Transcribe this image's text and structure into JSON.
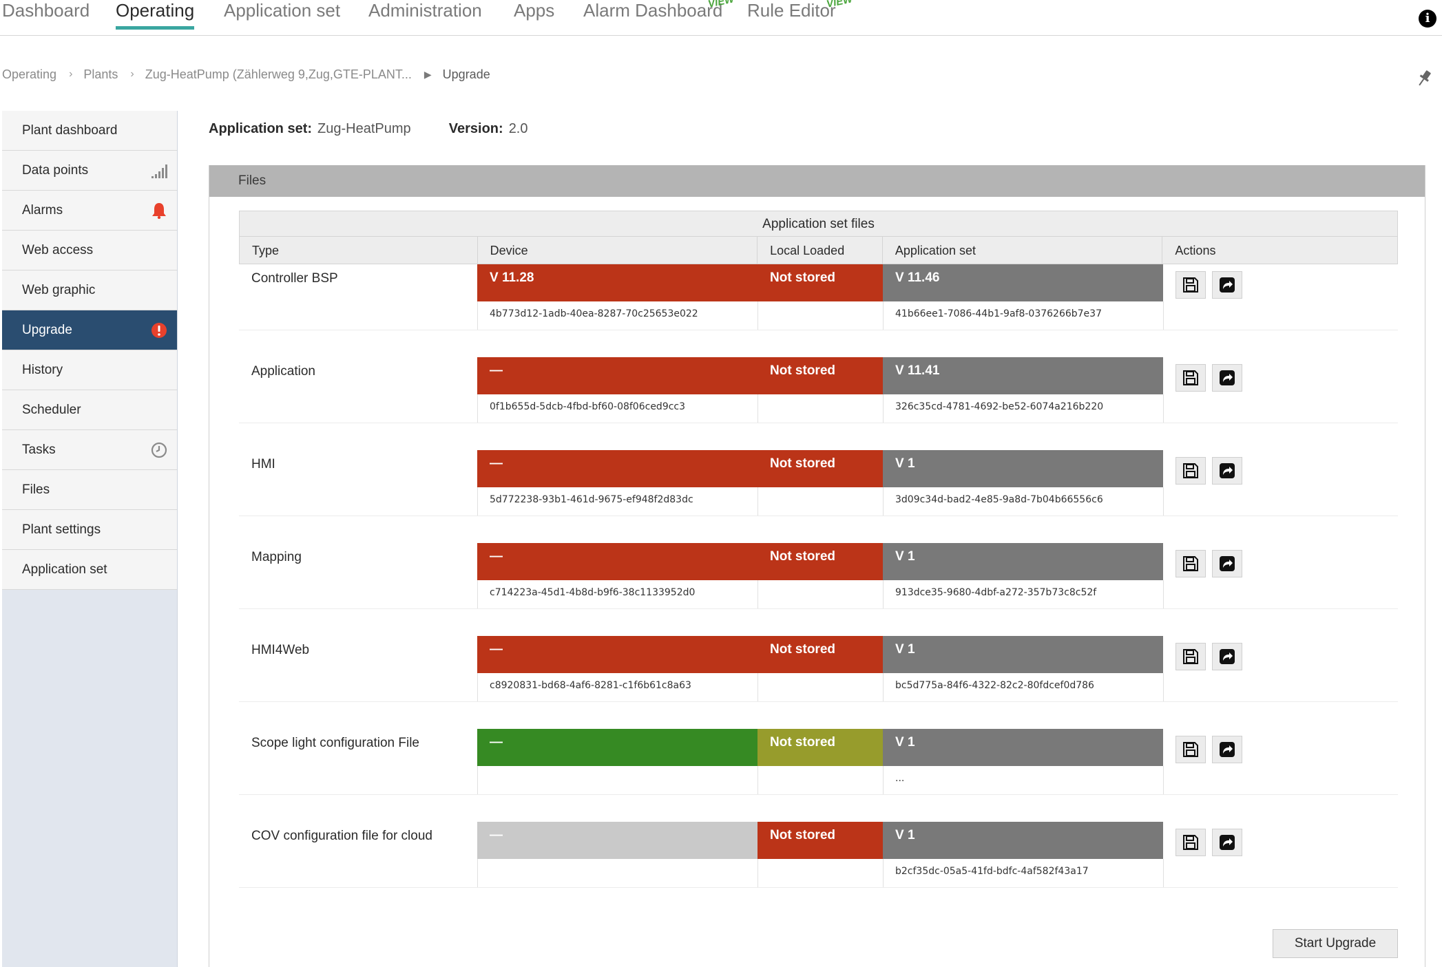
{
  "topnav": {
    "tabs": [
      {
        "label": "Dashboard"
      },
      {
        "label": "Operating"
      },
      {
        "label": "Application set"
      },
      {
        "label": "Administration"
      },
      {
        "label": "Apps"
      },
      {
        "label": "Alarm Dashboard"
      },
      {
        "label": "Rule Editor"
      }
    ],
    "preview_label": "VIEW"
  },
  "breadcrumb": {
    "items": [
      "Operating",
      "Plants",
      "Zug-HeatPump (Zählerweg 9,Zug,GTE-PLANT...",
      "Upgrade"
    ]
  },
  "sidebar": {
    "items": [
      {
        "label": "Plant dashboard",
        "icon": ""
      },
      {
        "label": "Data points",
        "icon": "signal-bars-icon"
      },
      {
        "label": "Alarms",
        "icon": "bell-icon"
      },
      {
        "label": "Web access",
        "icon": ""
      },
      {
        "label": "Web graphic",
        "icon": ""
      },
      {
        "label": "Upgrade",
        "icon": "alert-icon"
      },
      {
        "label": "History",
        "icon": ""
      },
      {
        "label": "Scheduler",
        "icon": ""
      },
      {
        "label": "Tasks",
        "icon": "clock-icon"
      },
      {
        "label": "Files",
        "icon": ""
      },
      {
        "label": "Plant settings",
        "icon": ""
      },
      {
        "label": "Application set",
        "icon": ""
      }
    ]
  },
  "appinfo": {
    "app_label": "Application set:",
    "app_value": "Zug-HeatPump",
    "version_label": "Version:",
    "version_value": "2.0"
  },
  "files": {
    "header": "Files",
    "table_caption": "Application set files",
    "columns": [
      "Type",
      "Device",
      "Local Loaded",
      "Application set",
      "Actions"
    ],
    "rows": [
      {
        "type": "Controller BSP",
        "device": "V 11.28",
        "device_hash": "4b773d12-1adb-40ea-8287-70c25653e022",
        "local": "Not stored",
        "appset": "V 11.46",
        "appset_hash": "41b66ee1-7086-44b1-9af8-0376266b7e37"
      },
      {
        "type": "Application",
        "device": "—",
        "device_hash": "0f1b655d-5dcb-4fbd-bf60-08f06ced9cc3",
        "local": "Not stored",
        "appset": "V 11.41",
        "appset_hash": "326c35cd-4781-4692-be52-6074a216b220"
      },
      {
        "type": "HMI",
        "device": "—",
        "device_hash": "5d772238-93b1-461d-9675-ef948f2d83dc",
        "local": "Not stored",
        "appset": "V 1",
        "appset_hash": "3d09c34d-bad2-4e85-9a8d-7b04b66556c6"
      },
      {
        "type": "Mapping",
        "device": "—",
        "device_hash": "c714223a-45d1-4b8d-b9f6-38c1133952d0",
        "local": "Not stored",
        "appset": "V 1",
        "appset_hash": "913dce35-9680-4dbf-a272-357b73c8c52f"
      },
      {
        "type": "HMI4Web",
        "device": "—",
        "device_hash": "c8920831-bd68-4af6-8281-c1f6b61c8a63",
        "local": "Not stored",
        "appset": "V 1",
        "appset_hash": "bc5d775a-84f6-4322-82c2-80fdcef0d786"
      },
      {
        "type": "Scope light configuration File",
        "device": "—",
        "device_hash": "",
        "local": "Not stored",
        "appset": "V 1",
        "appset_hash": "..."
      },
      {
        "type": "COV configuration file for cloud",
        "device": "—",
        "device_hash": "",
        "local": "Not stored",
        "appset": "V 1",
        "appset_hash": "b2cf35dc-05a5-41fd-bdfc-4af582f43a17"
      }
    ],
    "status_colors": {
      "red": "#bb3418",
      "green": "#368a23",
      "olive": "#979c2c",
      "gray": "#797979",
      "light_gray": "#c9c9c9"
    },
    "action_icons": [
      "save-icon",
      "share-icon"
    ],
    "start_button": "Start Upgrade"
  },
  "colors": {
    "active_tab_underline": "#3aa6a0",
    "sidebar_active": "#2a4d70",
    "alarm_red": "#e8412c"
  }
}
